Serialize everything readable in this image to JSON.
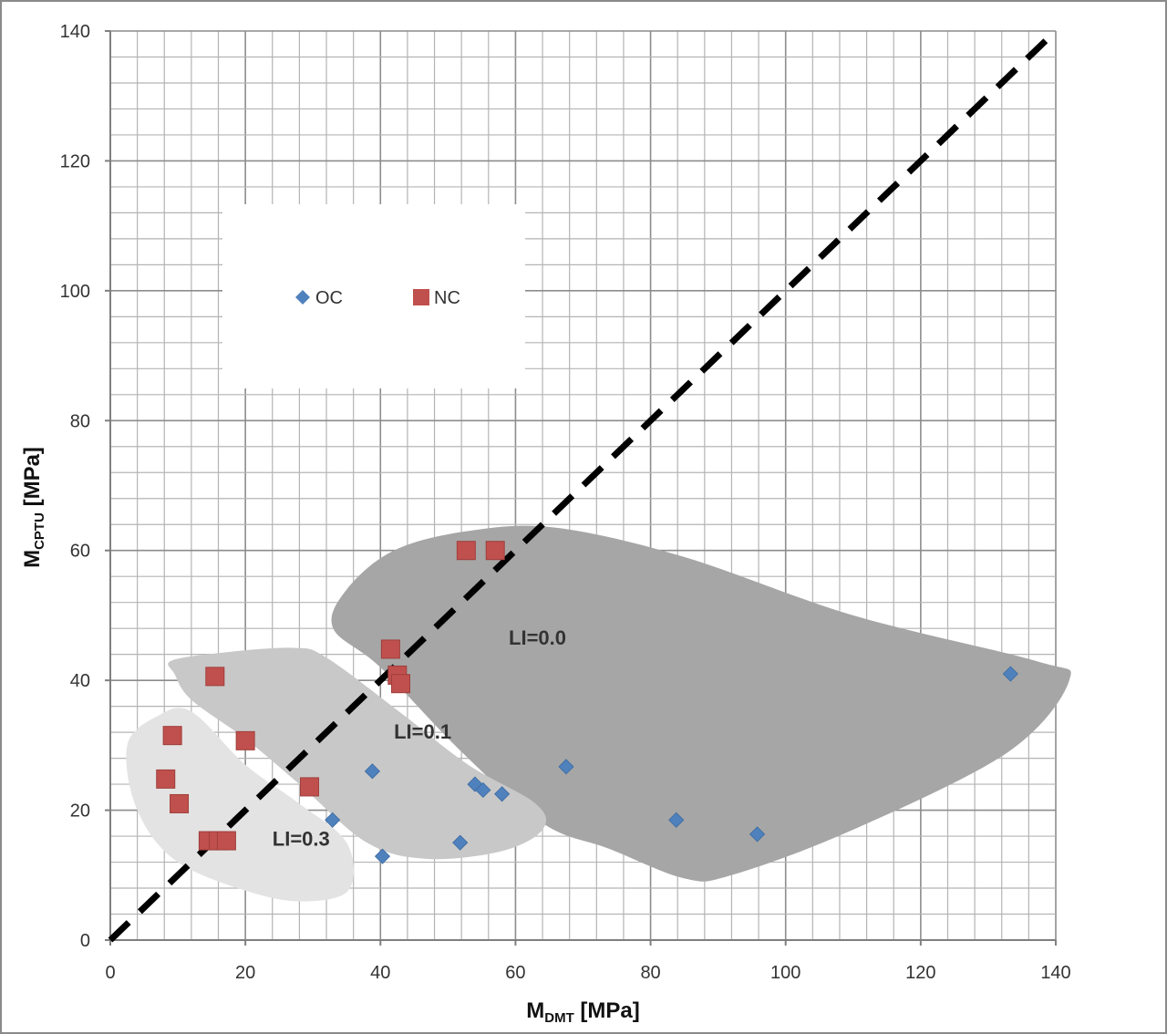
{
  "chart_data": {
    "type": "scatter",
    "xlabel": {
      "main": "M",
      "sub": "DMT",
      "unit": " [MPa]"
    },
    "ylabel": {
      "main": "M",
      "sub": "CPTU",
      "unit": " [MPa]"
    },
    "xlim": [
      0,
      140
    ],
    "ylim": [
      0,
      140
    ],
    "x_ticks": [
      0,
      20,
      40,
      60,
      80,
      100,
      120,
      140
    ],
    "y_ticks": [
      0,
      20,
      40,
      60,
      80,
      100,
      120,
      140
    ],
    "grid": true,
    "minor_grid_step": 4,
    "legend_placement": "upper-left",
    "series": [
      {
        "name": "OC",
        "marker": "diamond",
        "color": "#4f81bd",
        "points": [
          [
            32.9,
            18.5
          ],
          [
            38.8,
            26.0
          ],
          [
            40.3,
            12.9
          ],
          [
            51.8,
            15.0
          ],
          [
            54.0,
            24.0
          ],
          [
            55.2,
            23.1
          ],
          [
            58.0,
            22.5
          ],
          [
            67.5,
            26.7
          ],
          [
            83.8,
            18.5
          ],
          [
            95.8,
            16.3
          ],
          [
            133.3,
            41.0
          ]
        ]
      },
      {
        "name": "NC",
        "marker": "square",
        "color": "#c0504d",
        "points": [
          [
            8.2,
            24.8
          ],
          [
            9.2,
            31.5
          ],
          [
            10.2,
            21.0
          ],
          [
            15.5,
            40.6
          ],
          [
            14.5,
            15.3
          ],
          [
            16.0,
            15.3
          ],
          [
            17.2,
            15.3
          ],
          [
            20.0,
            30.7
          ],
          [
            29.5,
            23.6
          ],
          [
            41.5,
            44.8
          ],
          [
            42.5,
            40.8
          ],
          [
            43.0,
            39.5
          ],
          [
            52.7,
            60.0
          ],
          [
            57.0,
            60.0
          ]
        ]
      }
    ],
    "reference_line": {
      "style": "dashed",
      "color": "#000000",
      "x": [
        0,
        140
      ],
      "y": [
        0,
        140
      ]
    },
    "regions": [
      {
        "label": "LI=0.0",
        "label_at": [
          59,
          45.5
        ],
        "fill": "#a6a6a6",
        "outline": [
          [
            35,
            54
          ],
          [
            42,
            60
          ],
          [
            53,
            63
          ],
          [
            66,
            63.5
          ],
          [
            85,
            59
          ],
          [
            110,
            50
          ],
          [
            137,
            43
          ],
          [
            142,
            40
          ],
          [
            133,
            29
          ],
          [
            110,
            17
          ],
          [
            92,
            10
          ],
          [
            85,
            9.5
          ],
          [
            74,
            14
          ],
          [
            64,
            18
          ],
          [
            52,
            29
          ],
          [
            40,
            42
          ],
          [
            33,
            48
          ]
        ]
      },
      {
        "label": "LI=0.1",
        "label_at": [
          42,
          31
        ],
        "fill": "#c8c8c8",
        "outline": [
          [
            9,
            43
          ],
          [
            16,
            44.2
          ],
          [
            27,
            45
          ],
          [
            32,
            43.5
          ],
          [
            43,
            35
          ],
          [
            53,
            27
          ],
          [
            63,
            21
          ],
          [
            64,
            17
          ],
          [
            58,
            13.7
          ],
          [
            47,
            12.5
          ],
          [
            38,
            15
          ],
          [
            28,
            24
          ],
          [
            20,
            31
          ],
          [
            12,
            37
          ],
          [
            9.5,
            41
          ]
        ]
      },
      {
        "label": "LI=0.3",
        "label_at": [
          24,
          14.5
        ],
        "fill": "#e3e3e3",
        "outline": [
          [
            2.5,
            30
          ],
          [
            7,
            34.5
          ],
          [
            12,
            35.2
          ],
          [
            20,
            27
          ],
          [
            28,
            21
          ],
          [
            35,
            15
          ],
          [
            35.5,
            8
          ],
          [
            30,
            6
          ],
          [
            22,
            7
          ],
          [
            10,
            12
          ],
          [
            4,
            20
          ]
        ]
      }
    ]
  }
}
